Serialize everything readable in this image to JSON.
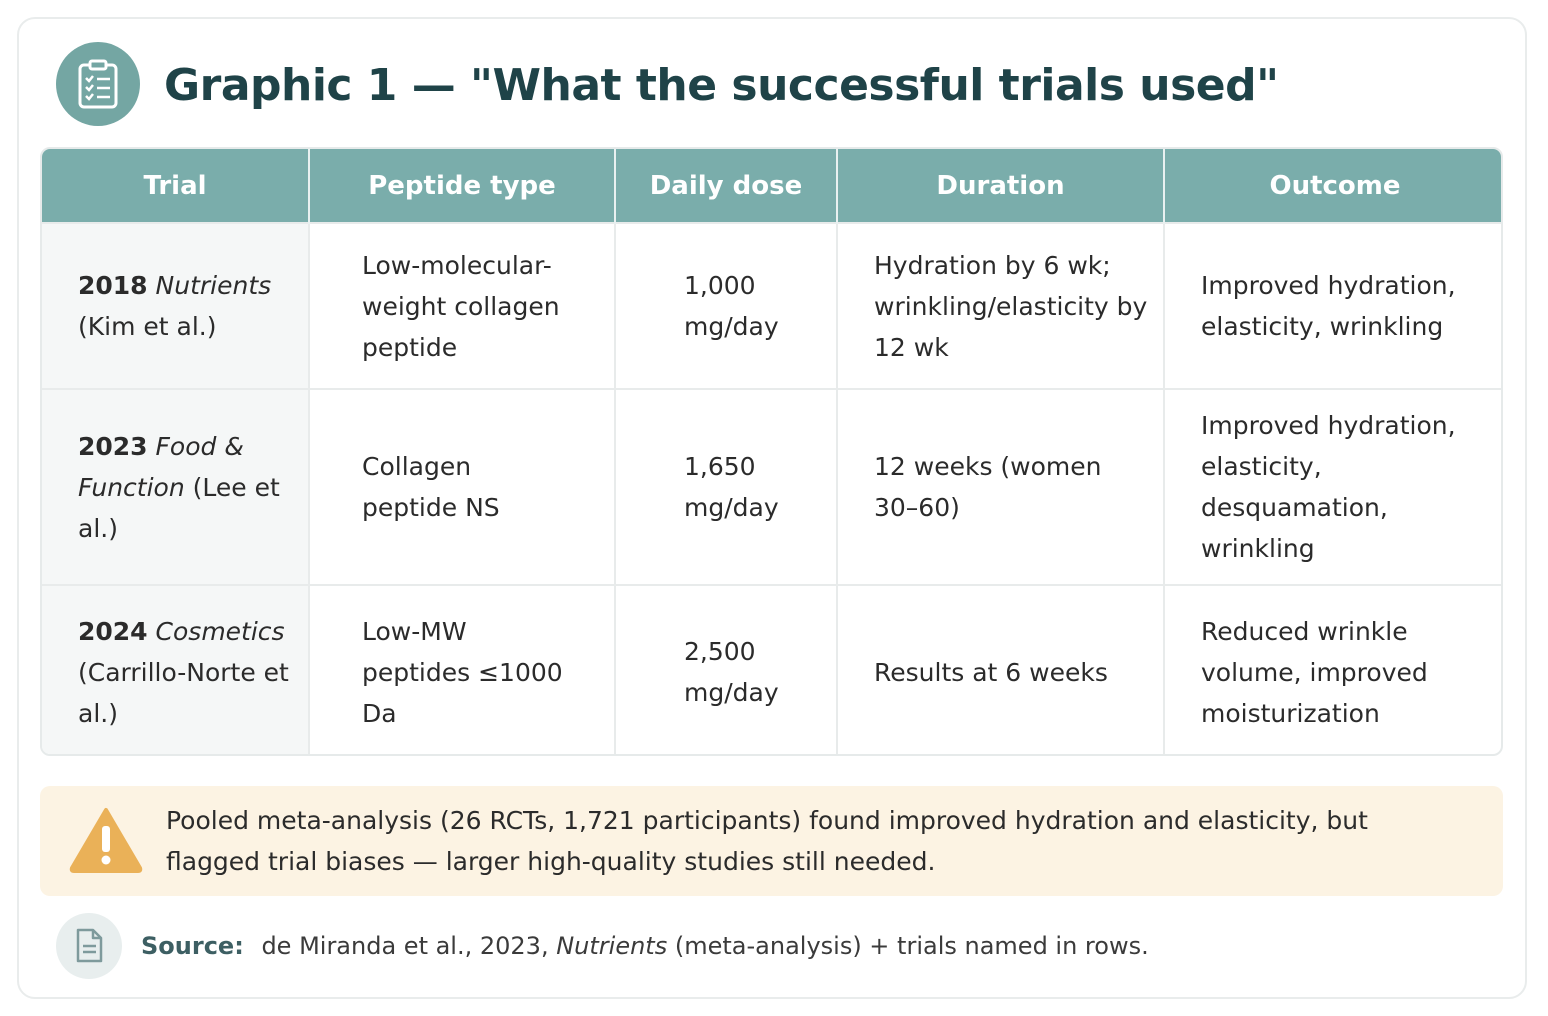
{
  "header": {
    "icon": "clipboard-checklist-icon",
    "title": "Graphic 1 — \"What the successful trials used\""
  },
  "table": {
    "columns": [
      "Trial",
      "Peptide type",
      "Daily dose",
      "Duration",
      "Outcome"
    ],
    "rows": [
      {
        "year": "2018",
        "journal": "Nutrients",
        "authors": "(Kim et al.)",
        "peptide_type": "Low-molecular-weight collagen peptide",
        "daily_dose": "1,000 mg/day",
        "duration": "Hydration by 6 wk; wrinkling/elasticity by 12 wk",
        "outcome": "Improved hydration, elasticity, wrinkling"
      },
      {
        "year": "2023",
        "journal": "Food & Function",
        "authors": "(Lee et al.)",
        "peptide_type": "Collagen peptide NS",
        "daily_dose": "1,650 mg/day",
        "duration": "12 weeks (women 30–60)",
        "outcome": "Improved hydration, elasticity, desquamation, wrinkling"
      },
      {
        "year": "2024",
        "journal": "Cosmetics",
        "authors": "(Carrillo-Norte et al.)",
        "peptide_type": "Low-MW peptides ≤1000 Da",
        "daily_dose": "2,500 mg/day",
        "duration": "Results at 6 weeks",
        "outcome": "Reduced wrinkle volume, improved moisturization"
      }
    ]
  },
  "warning": {
    "icon": "warning-triangle-icon",
    "text": "Pooled meta-analysis (26 RCTs, 1,721 participants) found improved hydration and elasticity, but flagged trial biases — larger high-quality studies still needed."
  },
  "source": {
    "icon": "document-icon",
    "label": "Source:",
    "text_before": "de Miranda et al., 2023,",
    "journal": "Nutrients",
    "text_after": "(meta-analysis) + trials named in rows."
  },
  "colors": {
    "header_teal": "#7aadab",
    "title": "#1f4348",
    "warning_bg": "#fcf3e3",
    "warning_icon": "#eab158"
  }
}
